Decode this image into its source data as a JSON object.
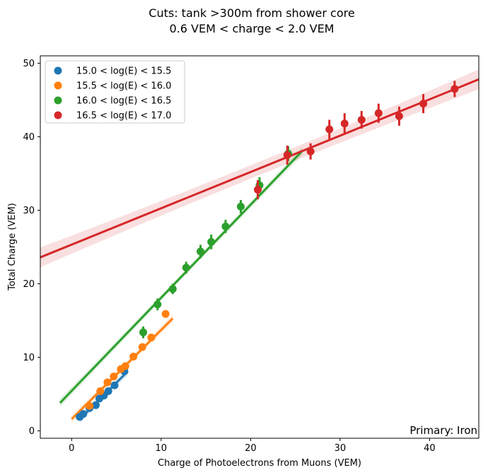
{
  "chart_data": {
    "type": "scatter",
    "title_lines": [
      "Cuts:  tank >300m from shower core",
      "0.6 VEM < charge < 2.0 VEM"
    ],
    "xlabel": "Charge of Photoelectrons from Muons (VEM)",
    "ylabel": "Total Charge (VEM)",
    "xlim": [
      -3.5,
      45.5
    ],
    "ylim": [
      -1,
      51
    ],
    "xticks": [
      0,
      10,
      20,
      30,
      40
    ],
    "yticks": [
      0,
      10,
      20,
      30,
      40,
      50
    ],
    "grid": false,
    "legend_position": "top-left",
    "annotation": "Primary: Iron",
    "series": [
      {
        "name": "15.0 < log(E) < 15.5",
        "color": "#1f77b4",
        "points": [
          {
            "x": 0.9,
            "y": 1.9,
            "err": 0.3
          },
          {
            "x": 1.3,
            "y": 2.3,
            "err": 0.3
          },
          {
            "x": 2.0,
            "y": 3.1,
            "err": 0.3
          },
          {
            "x": 2.7,
            "y": 3.5,
            "err": 0.3
          },
          {
            "x": 3.1,
            "y": 4.4,
            "err": 0.3
          },
          {
            "x": 3.6,
            "y": 4.8,
            "err": 0.3
          },
          {
            "x": 4.1,
            "y": 5.4,
            "err": 0.3
          },
          {
            "x": 4.8,
            "y": 6.2,
            "err": 0.3
          },
          {
            "x": 5.9,
            "y": 8.1,
            "err": 0.4
          }
        ],
        "fit": {
          "x": [
            1.0,
            6.2
          ],
          "y": [
            1.7,
            8.0
          ]
        }
      },
      {
        "name": "15.5 < log(E) < 16.0",
        "color": "#ff7f0e",
        "points": [
          {
            "x": 2.0,
            "y": 3.4,
            "err": 0.3
          },
          {
            "x": 3.2,
            "y": 5.4,
            "err": 0.3
          },
          {
            "x": 4.0,
            "y": 6.6,
            "err": 0.3
          },
          {
            "x": 4.7,
            "y": 7.4,
            "err": 0.3
          },
          {
            "x": 5.5,
            "y": 8.4,
            "err": 0.3
          },
          {
            "x": 6.0,
            "y": 8.8,
            "err": 0.3
          },
          {
            "x": 6.9,
            "y": 10.1,
            "err": 0.3
          },
          {
            "x": 7.9,
            "y": 11.4,
            "err": 0.3
          },
          {
            "x": 8.9,
            "y": 12.7,
            "err": 0.3
          },
          {
            "x": 10.5,
            "y": 15.9,
            "err": 0.3
          }
        ],
        "fit": {
          "x": [
            0.0,
            11.3
          ],
          "y": [
            1.6,
            15.3
          ]
        }
      },
      {
        "name": "16.0 < log(E) < 16.5",
        "color": "#2ca02c",
        "points": [
          {
            "x": 8.0,
            "y": 13.4,
            "err": 0.8
          },
          {
            "x": 9.6,
            "y": 17.2,
            "err": 0.8
          },
          {
            "x": 11.3,
            "y": 19.3,
            "err": 0.7
          },
          {
            "x": 12.8,
            "y": 22.2,
            "err": 0.8
          },
          {
            "x": 14.4,
            "y": 24.4,
            "err": 0.9
          },
          {
            "x": 15.6,
            "y": 25.7,
            "err": 1.0
          },
          {
            "x": 17.2,
            "y": 27.8,
            "err": 0.9
          },
          {
            "x": 18.9,
            "y": 30.5,
            "err": 0.9
          },
          {
            "x": 21.0,
            "y": 33.4,
            "err": 1.1
          },
          {
            "x": 24.2,
            "y": 37.7,
            "err": 1.0
          }
        ],
        "fit": {
          "x": [
            -1.3,
            25.8
          ],
          "y": [
            3.8,
            38.1
          ]
        }
      },
      {
        "name": "16.5 < log(E) < 17.0",
        "color": "#d62728",
        "points": [
          {
            "x": 20.8,
            "y": 32.8,
            "err": 1.3
          },
          {
            "x": 24.1,
            "y": 37.5,
            "err": 1.3
          },
          {
            "x": 26.7,
            "y": 38.0,
            "err": 1.1
          },
          {
            "x": 28.8,
            "y": 41.0,
            "err": 1.3
          },
          {
            "x": 30.5,
            "y": 41.8,
            "err": 1.4
          },
          {
            "x": 32.4,
            "y": 42.3,
            "err": 1.2
          },
          {
            "x": 34.3,
            "y": 43.2,
            "err": 1.3
          },
          {
            "x": 36.6,
            "y": 42.8,
            "err": 1.3
          },
          {
            "x": 39.3,
            "y": 44.5,
            "err": 1.3
          },
          {
            "x": 42.8,
            "y": 46.5,
            "err": 1.1
          }
        ],
        "fit": {
          "x": [
            -3.5,
            45.5
          ],
          "y": [
            23.6,
            47.8
          ]
        }
      }
    ]
  }
}
